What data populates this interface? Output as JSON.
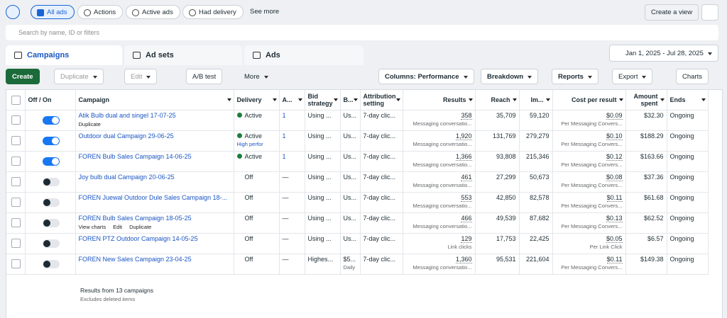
{
  "filter_chips": [
    "All ads",
    "Actions",
    "Active ads",
    "Had delivery"
  ],
  "see_more": "See more",
  "create_view": "Create a view",
  "search_placeholder": "Search by name, ID or filters",
  "tabs": [
    "Campaigns",
    "Ad sets",
    "Ads"
  ],
  "date_range": "Jan 1, 2025 - Jul 28, 2025",
  "toolbar": {
    "create": "Create",
    "duplicate": "Duplicate",
    "edit": "Edit",
    "ab_test": "A/B test",
    "more": "More",
    "columns": "Columns: Performance",
    "breakdown": "Breakdown",
    "reports": "Reports",
    "export": "Export",
    "charts": "Charts"
  },
  "table": {
    "columns": [
      "Off / On",
      "Campaign",
      "Delivery",
      "A...",
      "Bid strategy",
      "B...",
      "Attribution setting",
      "Results",
      "Reach",
      "Im...",
      "Cost per result",
      "Amount spent",
      "Ends"
    ],
    "rows": [
      {
        "on": true,
        "campaign": "Atik Bulb dual and singel 17-07-25",
        "actions": [
          "Duplicate"
        ],
        "delivery": "Active",
        "a": "1",
        "bid": "Using ...",
        "budget": "Us...",
        "attribution": "7-day clic...",
        "results": "358",
        "results_note": "Messaging conversatio...",
        "reach": "35,709",
        "impressions": "59,120",
        "cost": "$0.09",
        "cost_note": "Per Messaging Convers...",
        "spent": "$32.30",
        "ends": "Ongoing"
      },
      {
        "on": true,
        "campaign": "Outdoor dual Campaign 29-06-25",
        "delivery": "Active",
        "delivery_note": "High perfor",
        "a": "1",
        "bid": "Using ...",
        "budget": "Us...",
        "attribution": "7-day clic...",
        "results": "1,920",
        "results_note": "Messaging conversatio...",
        "reach": "131,769",
        "impressions": "279,279",
        "cost": "$0.10",
        "cost_note": "Per Messaging Convers...",
        "spent": "$188.29",
        "ends": "Ongoing"
      },
      {
        "on": true,
        "campaign": "FOREN Bulb Sales Campaign 14-06-25",
        "delivery": "Active",
        "a": "1",
        "bid": "Using ...",
        "budget": "Us...",
        "attribution": "7-day clic...",
        "results": "1,366",
        "results_note": "Messaging conversatio...",
        "reach": "93,808",
        "impressions": "215,346",
        "cost": "$0.12",
        "cost_note": "Per Messaging Convers...",
        "spent": "$163.66",
        "ends": "Ongoing"
      },
      {
        "on": false,
        "campaign": "Joy bulb dual Campaign 20-06-25",
        "delivery": "Off",
        "a": "—",
        "bid": "Using ...",
        "budget": "Us...",
        "attribution": "7-day clic...",
        "results": "461",
        "results_note": "Messaging conversatio...",
        "reach": "27,299",
        "impressions": "50,673",
        "cost": "$0.08",
        "cost_note": "Per Messaging Convers...",
        "spent": "$37.36",
        "ends": "Ongoing"
      },
      {
        "on": false,
        "campaign": "FOREN Juewal Outdoor Dule Sales Campaign 18-...",
        "delivery": "Off",
        "a": "—",
        "bid": "Using ...",
        "budget": "Us...",
        "attribution": "7-day clic...",
        "results": "553",
        "results_note": "Messaging conversatio...",
        "reach": "42,850",
        "impressions": "82,578",
        "cost": "$0.11",
        "cost_note": "Per Messaging Convers...",
        "spent": "$61.68",
        "ends": "Ongoing"
      },
      {
        "on": false,
        "campaign": "FOREN Bulb Sales Campaign 18-05-25",
        "actions": [
          "View charts",
          "Edit",
          "Duplicate"
        ],
        "delivery": "Off",
        "a": "—",
        "bid": "Using ...",
        "budget": "Us...",
        "attribution": "7-day clic...",
        "results": "466",
        "results_note": "Messaging conversatio...",
        "reach": "49,539",
        "impressions": "87,682",
        "cost": "$0.13",
        "cost_note": "Per Messaging Convers...",
        "spent": "$62.52",
        "ends": "Ongoing"
      },
      {
        "on": false,
        "campaign": "FOREN PTZ Outdoor Campaign 14-05-25",
        "delivery": "Off",
        "a": "—",
        "bid": "Using ...",
        "budget": "Us...",
        "attribution": "7-day clic...",
        "results": "129",
        "results_note": "Link clicks",
        "reach": "17,753",
        "impressions": "22,425",
        "cost": "$0.05",
        "cost_note": "Per Link Click",
        "spent": "$6.57",
        "ends": "Ongoing"
      },
      {
        "on": false,
        "campaign": "FOREN New Sales Campaign 23-04-25",
        "delivery": "Off",
        "a": "—",
        "bid": "Highes...",
        "budget": "$5...",
        "budget_note": "Daily",
        "attribution": "7-day clic...",
        "results": "1,360",
        "results_note": "Messaging conversatio...",
        "reach": "95,531",
        "impressions": "221,604",
        "cost": "$0.11",
        "cost_note": "Per Messaging Convers...",
        "spent": "$149.38",
        "ends": "Ongoing"
      }
    ]
  },
  "footer": {
    "summary": "Results from 13 campaigns",
    "note": "Excludes deleted items"
  }
}
